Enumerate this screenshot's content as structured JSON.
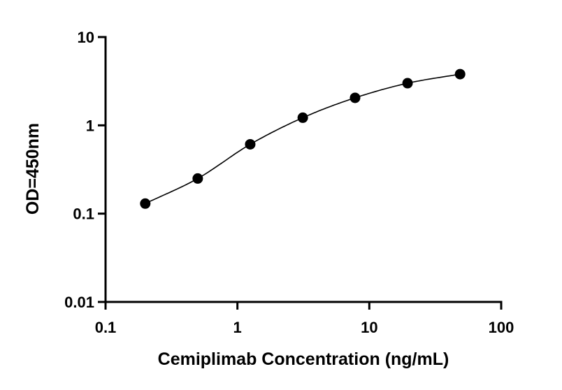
{
  "chart_data": {
    "type": "scatter",
    "title": "",
    "xlabel": "Cemiplimab Concentration (ng/mL)",
    "ylabel": "OD=450nm",
    "x_scale": "log",
    "y_scale": "log",
    "xlim": [
      0.1,
      100
    ],
    "ylim": [
      0.01,
      10
    ],
    "x_ticks": [
      0.1,
      1,
      10,
      100
    ],
    "x_tick_labels": [
      "0.1",
      "1",
      "10",
      "100"
    ],
    "y_ticks": [
      0.01,
      0.1,
      1,
      10
    ],
    "y_tick_labels": [
      "0.01",
      "0.1",
      "1",
      "10"
    ],
    "grid": false,
    "series": [
      {
        "x": [
          0.2,
          0.5,
          1.25,
          3.13,
          7.8,
          19.5,
          48.8
        ],
        "y": [
          0.13,
          0.25,
          0.61,
          1.22,
          2.05,
          3.0,
          3.8
        ]
      }
    ],
    "fit_curve": true,
    "point_color": "#000000"
  }
}
